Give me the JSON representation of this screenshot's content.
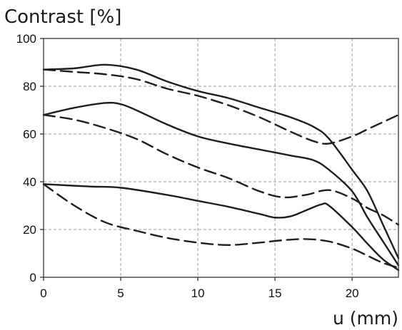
{
  "chart_data": {
    "type": "line",
    "title": "Contrast [%]",
    "xlabel": "u (mm)",
    "ylabel": "",
    "xlim": [
      0,
      23
    ],
    "ylim": [
      0,
      100
    ],
    "grid": true,
    "x_ticks": [
      "0",
      "5",
      "10",
      "15",
      "20"
    ],
    "y_ticks": [
      "0",
      "20",
      "40",
      "60",
      "80",
      "100"
    ],
    "series": [
      {
        "style": "solid",
        "points": [
          [
            0,
            87
          ],
          [
            2,
            87.5
          ],
          [
            4,
            89
          ],
          [
            6,
            87
          ],
          [
            8,
            82
          ],
          [
            10,
            78
          ],
          [
            12,
            75
          ],
          [
            14,
            71
          ],
          [
            16,
            67
          ],
          [
            17.5,
            63
          ],
          [
            18.5,
            58
          ],
          [
            20,
            45
          ],
          [
            21,
            36
          ],
          [
            22,
            22
          ],
          [
            23,
            8
          ]
        ]
      },
      {
        "style": "dashed",
        "points": [
          [
            0,
            87
          ],
          [
            2,
            86
          ],
          [
            4,
            85
          ],
          [
            6,
            83
          ],
          [
            8,
            79
          ],
          [
            10,
            76
          ],
          [
            12,
            72
          ],
          [
            14,
            67
          ],
          [
            16,
            61
          ],
          [
            17.5,
            57
          ],
          [
            18.5,
            56
          ],
          [
            20,
            59
          ],
          [
            21,
            62
          ],
          [
            22,
            65
          ],
          [
            23,
            68
          ]
        ]
      },
      {
        "style": "solid",
        "points": [
          [
            0,
            68
          ],
          [
            2,
            71
          ],
          [
            4,
            73
          ],
          [
            5,
            72.5
          ],
          [
            6,
            70
          ],
          [
            8,
            64
          ],
          [
            10,
            59
          ],
          [
            12,
            56
          ],
          [
            14,
            53.5
          ],
          [
            16,
            51
          ],
          [
            17.5,
            49
          ],
          [
            18.5,
            45
          ],
          [
            20,
            36
          ],
          [
            21,
            25
          ],
          [
            22,
            15
          ],
          [
            23,
            5
          ]
        ]
      },
      {
        "style": "dashed",
        "points": [
          [
            0,
            68
          ],
          [
            2,
            66
          ],
          [
            4,
            62.5
          ],
          [
            6,
            58
          ],
          [
            8,
            51.5
          ],
          [
            10,
            46
          ],
          [
            12,
            41.5
          ],
          [
            14,
            36
          ],
          [
            15.5,
            33.5
          ],
          [
            17,
            34.5
          ],
          [
            18.5,
            36.5
          ],
          [
            20,
            33
          ],
          [
            21,
            29
          ],
          [
            22,
            26
          ],
          [
            23,
            22
          ]
        ]
      },
      {
        "style": "solid",
        "points": [
          [
            0,
            39
          ],
          [
            3,
            38
          ],
          [
            5,
            37.5
          ],
          [
            8,
            34.5
          ],
          [
            10,
            32
          ],
          [
            12,
            29.5
          ],
          [
            14,
            26.5
          ],
          [
            15,
            25
          ],
          [
            16,
            25.5
          ],
          [
            17,
            28
          ],
          [
            18,
            30.5
          ],
          [
            18.5,
            30
          ],
          [
            20,
            21
          ],
          [
            21,
            14
          ],
          [
            22,
            7.5
          ],
          [
            23,
            3
          ]
        ]
      },
      {
        "style": "dashed",
        "points": [
          [
            0,
            39
          ],
          [
            2,
            30
          ],
          [
            4,
            23
          ],
          [
            6,
            19.5
          ],
          [
            8,
            16.5
          ],
          [
            10,
            14.5
          ],
          [
            12,
            13.5
          ],
          [
            14,
            14.5
          ],
          [
            15.5,
            15.5
          ],
          [
            17,
            16
          ],
          [
            18.5,
            15
          ],
          [
            20,
            12
          ],
          [
            21,
            9
          ],
          [
            22,
            6
          ],
          [
            23,
            4
          ]
        ]
      }
    ]
  }
}
